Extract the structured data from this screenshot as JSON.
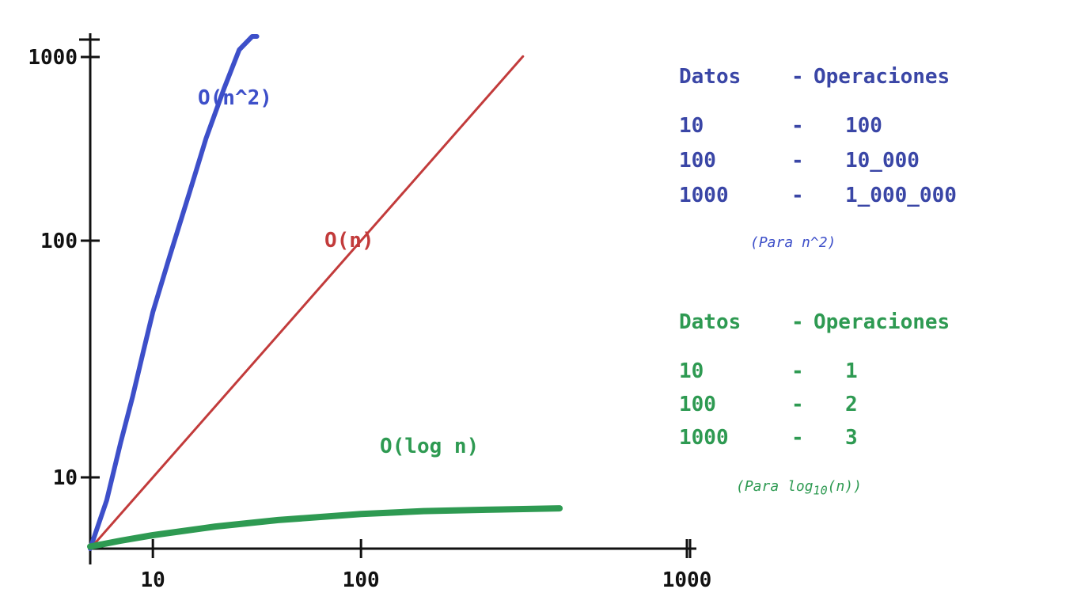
{
  "colors": {
    "quadratic": "#3d4fc9",
    "linear": "#c23b3b",
    "logarithmic": "#2e9a52",
    "axis": "#111111",
    "table_blue": "#3a46a6",
    "table_green": "#2e9a52"
  },
  "chart_data": {
    "type": "line",
    "title": "",
    "xlabel": "",
    "ylabel": "",
    "x_ticks": [
      "10",
      "100",
      "1000"
    ],
    "y_ticks": [
      "10",
      "100",
      "1000"
    ],
    "x_scale": "log",
    "y_scale": "log",
    "xlim": [
      5,
      1000
    ],
    "ylim": [
      5,
      1000
    ],
    "grid": false,
    "series": [
      {
        "name": "O(n^2)",
        "x": [
          5,
          6,
          7,
          8,
          9,
          10,
          12,
          15,
          18,
          22,
          26,
          30,
          31.6
        ],
        "values": [
          5,
          8,
          14,
          22,
          34,
          50,
          85,
          160,
          270,
          440,
          640,
          880,
          1000
        ]
      },
      {
        "name": "O(n)",
        "x": [
          5,
          10,
          100,
          600
        ],
        "values": [
          5,
          10,
          100,
          600
        ]
      },
      {
        "name": "O(log n)",
        "x": [
          5,
          7,
          10,
          20,
          40,
          100,
          200,
          400,
          900
        ],
        "values": [
          5.1,
          5.4,
          5.7,
          6.2,
          6.6,
          7.0,
          7.2,
          7.3,
          7.4
        ]
      }
    ]
  },
  "tables": {
    "quadratic": {
      "header": [
        "Datos",
        "-",
        "Operaciones"
      ],
      "rows": [
        [
          "10",
          "-",
          "100"
        ],
        [
          "100",
          "-",
          "10_000"
        ],
        [
          "1000",
          "-",
          "1_000_000"
        ]
      ],
      "note": "(Para n^2)"
    },
    "logarithmic": {
      "header": [
        "Datos",
        "-",
        "Operaciones"
      ],
      "rows": [
        [
          "10",
          "-",
          "1"
        ],
        [
          "100",
          "-",
          "2"
        ],
        [
          "1000",
          "-",
          "3"
        ]
      ],
      "note_prefix": "(Para log",
      "note_sub": "10",
      "note_suffix": "(n))"
    }
  }
}
